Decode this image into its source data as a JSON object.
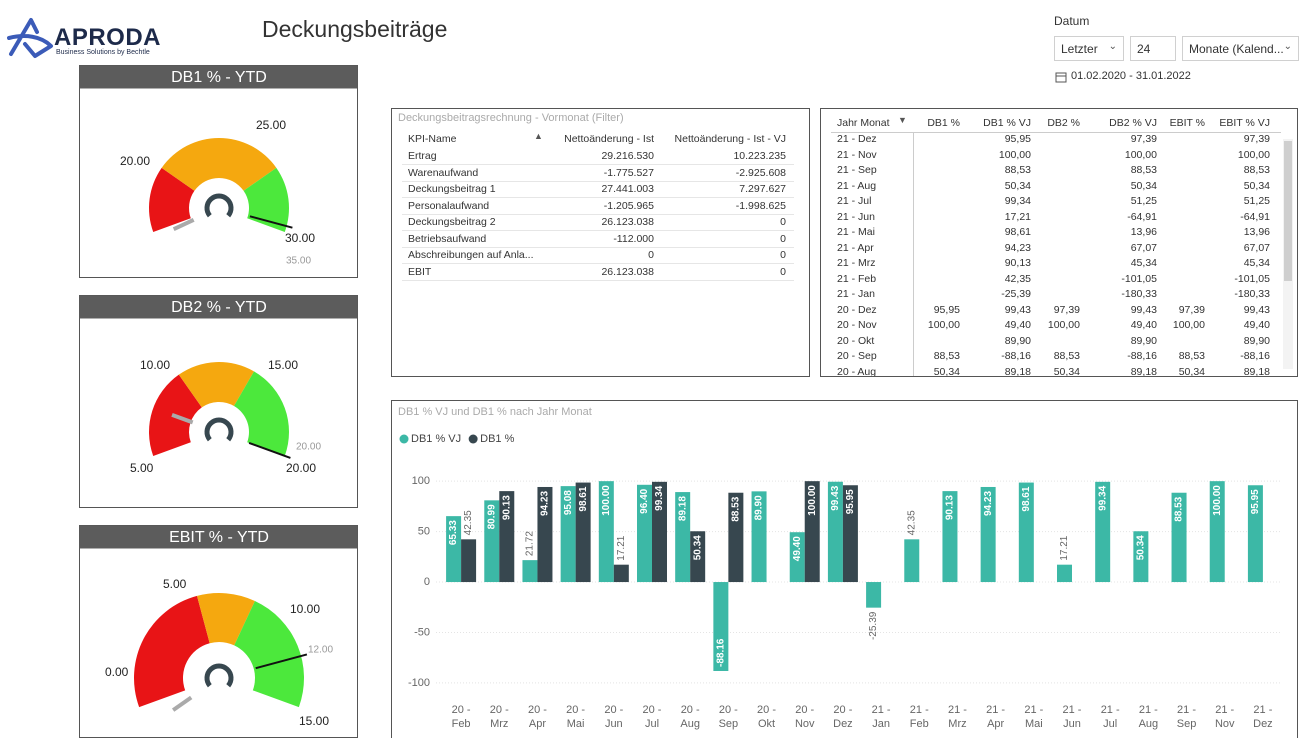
{
  "header": {
    "logo": "APRODA",
    "logo_tagline": "Business Solutions by Bechtle",
    "title": "Deckungsbeiträge"
  },
  "filter": {
    "label": "Datum",
    "mode": "Letzter",
    "count": "24",
    "unit": "Monate (Kalend...",
    "range": "01.02.2020 - 31.01.2022"
  },
  "gauges": [
    {
      "title": "DB1 % - YTD",
      "labels": [
        "20.00",
        "25.00",
        "30.00"
      ],
      "target_label": "35.00"
    },
    {
      "title": "DB2 % - YTD",
      "labels": [
        "10.00",
        "15.00",
        "5.00",
        "20.00"
      ],
      "target_label": "20.00"
    },
    {
      "title": "EBIT % - YTD",
      "labels": [
        "5.00",
        "10.00",
        "0.00",
        "15.00"
      ],
      "target_label": "12.00"
    }
  ],
  "table1": {
    "title": "Deckungsbeitragsrechnung - Vormonat (Filter)",
    "headers": [
      "KPI-Name",
      "Nettoänderung - Ist",
      "Nettoänderung - Ist - VJ"
    ],
    "rows": [
      [
        "Ertrag",
        "29.216.530",
        "10.223.235"
      ],
      [
        "Warenaufwand",
        "-1.775.527",
        "-2.925.608"
      ],
      [
        "Deckungsbeitrag 1",
        "27.441.003",
        "7.297.627"
      ],
      [
        "Personalaufwand",
        "-1.205.965",
        "-1.998.625"
      ],
      [
        "Deckungsbeitrag 2",
        "26.123.038",
        "0"
      ],
      [
        "Betriebsaufwand",
        "-112.000",
        "0"
      ],
      [
        "Abschreibungen auf Anla...",
        "0",
        "0"
      ],
      [
        "EBIT",
        "26.123.038",
        "0"
      ]
    ]
  },
  "table2": {
    "headers": [
      "Jahr Monat",
      "DB1 %",
      "DB1 % VJ",
      "DB2 %",
      "DB2 % VJ",
      "EBIT %",
      "EBIT % VJ"
    ],
    "rows": [
      [
        "21 - Dez",
        null,
        "95,95",
        null,
        "97,39",
        null,
        "97,39"
      ],
      [
        "21 - Nov",
        null,
        "100,00",
        null,
        "100,00",
        null,
        "100,00"
      ],
      [
        "21 - Sep",
        null,
        "88,53",
        null,
        "88,53",
        null,
        "88,53"
      ],
      [
        "21 - Aug",
        null,
        "50,34",
        null,
        "50,34",
        null,
        "50,34"
      ],
      [
        "21 - Jul",
        null,
        "99,34",
        null,
        "51,25",
        null,
        "51,25"
      ],
      [
        "21 - Jun",
        null,
        "17,21",
        null,
        "-64,91",
        null,
        "-64,91"
      ],
      [
        "21 - Mai",
        null,
        "98,61",
        null,
        "13,96",
        null,
        "13,96"
      ],
      [
        "21 - Apr",
        null,
        "94,23",
        null,
        "67,07",
        null,
        "67,07"
      ],
      [
        "21 - Mrz",
        null,
        "90,13",
        null,
        "45,34",
        null,
        "45,34"
      ],
      [
        "21 - Feb",
        null,
        "42,35",
        null,
        "-101,05",
        null,
        "-101,05"
      ],
      [
        "21 - Jan",
        null,
        "-25,39",
        null,
        "-180,33",
        null,
        "-180,33"
      ],
      [
        "20 - Dez",
        "95,95",
        "99,43",
        "97,39",
        "99,43",
        "97,39",
        "99,43"
      ],
      [
        "20 - Nov",
        "100,00",
        "49,40",
        "100,00",
        "49,40",
        "100,00",
        "49,40"
      ],
      [
        "20 - Okt",
        null,
        "89,90",
        null,
        "89,90",
        null,
        "89,90"
      ],
      [
        "20 - Sep",
        "88,53",
        "-88,16",
        "88,53",
        "-88,16",
        "88,53",
        "-88,16"
      ],
      [
        "20 - Aug",
        "50,34",
        "89,18",
        "50,34",
        "89,18",
        "50,34",
        "89,18"
      ]
    ]
  },
  "chart_data": {
    "type": "bar",
    "title": "DB1 % VJ und DB1 % nach Jahr Monat",
    "categories": [
      "20 - Feb",
      "20 - Mrz",
      "20 - Apr",
      "20 - Mai",
      "20 - Jun",
      "20 - Jul",
      "20 - Aug",
      "20 - Sep",
      "20 - Okt",
      "20 - Nov",
      "20 - Dez",
      "21 - Jan",
      "21 - Feb",
      "21 - Mrz",
      "21 - Apr",
      "21 - Mai",
      "21 - Jun",
      "21 - Jul",
      "21 - Aug",
      "21 - Sep",
      "21 - Nov",
      "21 - Dez"
    ],
    "series": [
      {
        "name": "DB1 % VJ",
        "color": "#3cb8a6",
        "values": [
          65.33,
          80.99,
          21.72,
          95.08,
          100,
          96.4,
          89.18,
          -88.16,
          89.9,
          49.4,
          99.43,
          -25.39,
          42.35,
          90.13,
          94.23,
          98.61,
          17.21,
          99.34,
          50.34,
          88.53,
          100,
          95.95
        ],
        "value_labels": [
          "65.33",
          "80.99",
          "21.72",
          "95.08",
          "100.00",
          "96.40",
          "89.18",
          "-88.16",
          "89.90",
          "49.40",
          "99.43",
          "-25.39",
          "42.35",
          "90.13",
          "94.23",
          "98.61",
          "17.21",
          "99.34",
          "50.34",
          "88.53",
          "100.00",
          "95.95"
        ]
      },
      {
        "name": "DB1 %",
        "color": "#37474f",
        "values": [
          42.35,
          90.13,
          94.23,
          98.61,
          17.21,
          99.34,
          50.34,
          88.53,
          null,
          100,
          95.95,
          null,
          null,
          null,
          null,
          null,
          null,
          null,
          null,
          null,
          null,
          null
        ],
        "value_labels": [
          "42.35",
          "90.13",
          "94.23",
          "98.61",
          "17.21",
          "99.34",
          "50.34",
          "88.53",
          null,
          "100.00",
          "95.95",
          null,
          null,
          null,
          null,
          null,
          null,
          null,
          null,
          null,
          null,
          null
        ]
      }
    ],
    "ylim": [
      -108,
      118
    ],
    "yticks": [
      -100,
      -50,
      0,
      50,
      100
    ],
    "grid": true,
    "legend": "top-left"
  }
}
